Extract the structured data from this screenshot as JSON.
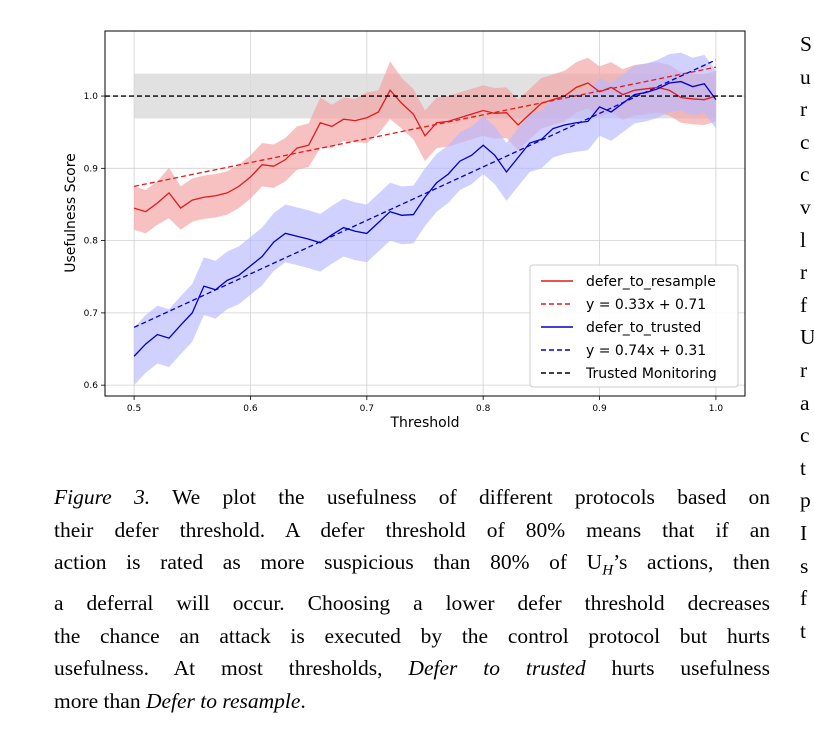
{
  "chart_data": {
    "type": "line",
    "xlabel": "Threshold",
    "ylabel": "Usefulness Score",
    "xlim": [
      0.475,
      1.025
    ],
    "ylim": [
      0.585,
      1.09
    ],
    "xticks": [
      "0.5",
      "0.6",
      "0.7",
      "0.8",
      "0.9",
      "1.0"
    ],
    "yticks": [
      "0.6",
      "0.7",
      "0.8",
      "0.9",
      "1.0"
    ],
    "grid": true,
    "legend_position": "lower-right",
    "x": [
      0.5,
      0.51,
      0.52,
      0.53,
      0.54,
      0.55,
      0.56,
      0.57,
      0.58,
      0.59,
      0.6,
      0.61,
      0.62,
      0.63,
      0.64,
      0.65,
      0.66,
      0.67,
      0.68,
      0.69,
      0.7,
      0.71,
      0.72,
      0.73,
      0.74,
      0.75,
      0.76,
      0.77,
      0.78,
      0.79,
      0.8,
      0.81,
      0.82,
      0.83,
      0.84,
      0.85,
      0.86,
      0.87,
      0.88,
      0.89,
      0.9,
      0.91,
      0.92,
      0.93,
      0.94,
      0.95,
      0.96,
      0.97,
      0.98,
      0.99,
      1.0
    ],
    "series": [
      {
        "name": "defer_to_resample",
        "color": "#e31a1c",
        "band_color": "#f4a0a0",
        "values": [
          0.845,
          0.84,
          0.852,
          0.866,
          0.845,
          0.856,
          0.86,
          0.862,
          0.866,
          0.875,
          0.888,
          0.905,
          0.903,
          0.912,
          0.928,
          0.932,
          0.963,
          0.958,
          0.968,
          0.966,
          0.97,
          0.978,
          1.008,
          0.99,
          0.975,
          0.945,
          0.963,
          0.965,
          0.97,
          0.975,
          0.98,
          0.976,
          0.977,
          0.96,
          0.975,
          0.99,
          0.995,
          1.0,
          1.012,
          1.018,
          1.006,
          1.012,
          1.002,
          1.008,
          1.01,
          1.012,
          1.008,
          0.998,
          0.996,
          0.995,
          1.0
        ],
        "band_halfwidth": [
          0.03,
          0.03,
          0.03,
          0.035,
          0.03,
          0.03,
          0.03,
          0.03,
          0.03,
          0.03,
          0.03,
          0.03,
          0.03,
          0.03,
          0.03,
          0.03,
          0.035,
          0.03,
          0.03,
          0.03,
          0.035,
          0.03,
          0.04,
          0.035,
          0.035,
          0.035,
          0.035,
          0.035,
          0.035,
          0.035,
          0.035,
          0.035,
          0.035,
          0.035,
          0.035,
          0.035,
          0.035,
          0.035,
          0.035,
          0.035,
          0.035,
          0.035,
          0.035,
          0.035,
          0.035,
          0.035,
          0.035,
          0.035,
          0.035,
          0.035,
          0.035
        ]
      },
      {
        "name": "defer_to_trusted",
        "color": "#0000cc",
        "band_color": "#b8b8ff",
        "values": [
          0.64,
          0.657,
          0.67,
          0.665,
          0.683,
          0.7,
          0.737,
          0.732,
          0.745,
          0.752,
          0.765,
          0.778,
          0.798,
          0.81,
          0.806,
          0.802,
          0.797,
          0.808,
          0.818,
          0.813,
          0.81,
          0.825,
          0.84,
          0.835,
          0.836,
          0.86,
          0.88,
          0.892,
          0.91,
          0.918,
          0.932,
          0.918,
          0.895,
          0.915,
          0.935,
          0.94,
          0.955,
          0.96,
          0.963,
          0.965,
          0.985,
          0.978,
          0.99,
          1.002,
          1.005,
          1.01,
          1.018,
          1.02,
          1.013,
          1.017,
          0.995
        ],
        "band_halfwidth": [
          0.04,
          0.04,
          0.04,
          0.04,
          0.04,
          0.04,
          0.04,
          0.04,
          0.04,
          0.04,
          0.04,
          0.04,
          0.04,
          0.04,
          0.04,
          0.04,
          0.04,
          0.04,
          0.04,
          0.04,
          0.04,
          0.04,
          0.04,
          0.04,
          0.04,
          0.04,
          0.04,
          0.04,
          0.04,
          0.04,
          0.04,
          0.04,
          0.04,
          0.04,
          0.04,
          0.04,
          0.04,
          0.04,
          0.04,
          0.04,
          0.04,
          0.04,
          0.04,
          0.04,
          0.04,
          0.04,
          0.04,
          0.04,
          0.04,
          0.04,
          0.04
        ]
      }
    ],
    "fits": [
      {
        "name": "y = 0.33x + 0.71",
        "color": "#e31a1c",
        "slope": 0.33,
        "intercept": 0.71,
        "style": "dashed"
      },
      {
        "name": "y = 0.74x + 0.31",
        "color": "#0000cc",
        "slope": 0.74,
        "intercept": 0.31,
        "style": "dashed"
      }
    ],
    "reference": {
      "name": "Trusted Monitoring",
      "value": 1.0,
      "color": "#000000",
      "style": "dashed",
      "band": [
        0.969,
        1.031
      ],
      "band_color": "#d9d9d9"
    },
    "legend": [
      "defer_to_resample",
      "y = 0.33x + 0.71",
      "defer_to_trusted",
      "y = 0.74x + 0.31",
      "Trusted Monitoring"
    ]
  },
  "caption": {
    "label": "Figure 3.",
    "lines": [
      " We plot the usefulness of different protocols based on",
      "their defer threshold.  A defer threshold of 80% means that if an",
      "action is rated as more suspicious than 80% of U",
      "’s actions, then",
      "a deferral will occur. Choosing a lower defer threshold decreases",
      "the chance an attack is executed by the control protocol but hurts",
      "usefulness.  At most thresholds, ",
      "Defer to trusted",
      " hurts usefulness",
      "more than ",
      "Defer to resample",
      "."
    ],
    "subscript": "H"
  },
  "side_column": [
    "S",
    "u",
    "r",
    "c",
    "c",
    "v",
    "l",
    "r",
    "f",
    "U",
    "r",
    "a",
    "c",
    "t",
    "p",
    "I",
    "s",
    "f",
    "t"
  ]
}
